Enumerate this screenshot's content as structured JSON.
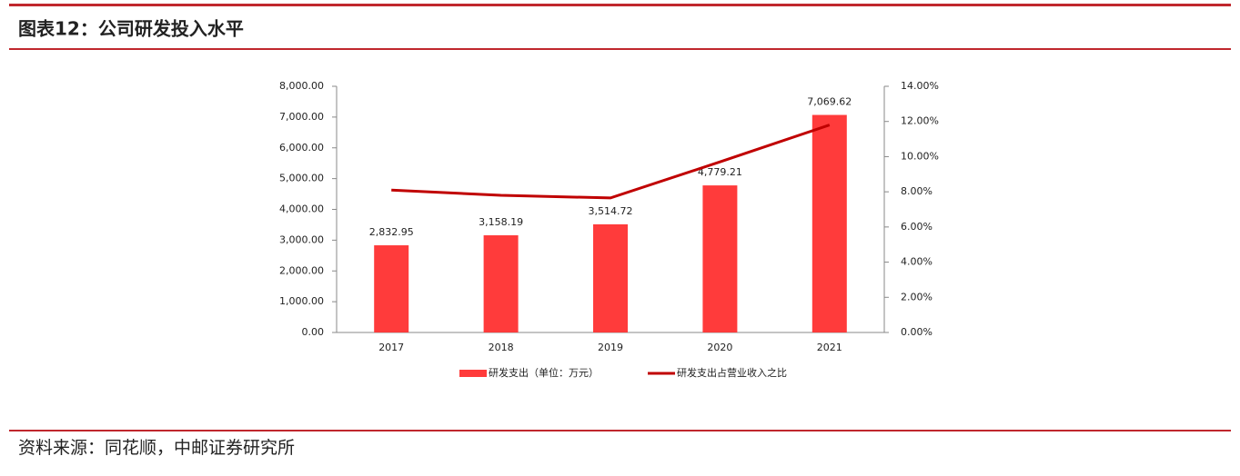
{
  "chart_data": {
    "type": "bar",
    "title": "图表12：公司研发投入水平",
    "categories": [
      "2017",
      "2018",
      "2019",
      "2020",
      "2021"
    ],
    "series": [
      {
        "name": "研发支出（单位：万元）",
        "type": "bar",
        "color": "#ff3b3b",
        "values": [
          2832.95,
          3158.19,
          3514.72,
          4779.21,
          7069.62
        ],
        "value_labels": [
          "2,832.95",
          "3,158.19",
          "3,514.72",
          "4,779.21",
          "7,069.62"
        ]
      },
      {
        "name": "研发支出占营业收入之比",
        "type": "line",
        "axis": "y2",
        "color": "#c00000",
        "values": [
          8.1,
          7.8,
          7.65,
          9.7,
          11.8
        ]
      }
    ],
    "ylim": [
      0,
      8000
    ],
    "yticks": [
      {
        "value": 0,
        "label": "0.00"
      },
      {
        "value": 1000,
        "label": "1,000.00"
      },
      {
        "value": 2000,
        "label": "2,000.00"
      },
      {
        "value": 3000,
        "label": "3,000.00"
      },
      {
        "value": 4000,
        "label": "4,000.00"
      },
      {
        "value": 5000,
        "label": "5,000.00"
      },
      {
        "value": 6000,
        "label": "6,000.00"
      },
      {
        "value": 7000,
        "label": "7,000.00"
      },
      {
        "value": 8000,
        "label": "8,000.00"
      }
    ],
    "y2lim": [
      0,
      14
    ],
    "y2ticks": [
      {
        "value": 0,
        "label": "0.00%"
      },
      {
        "value": 2,
        "label": "2.00%"
      },
      {
        "value": 4,
        "label": "4.00%"
      },
      {
        "value": 6,
        "label": "6.00%"
      },
      {
        "value": 8,
        "label": "8.00%"
      },
      {
        "value": 10,
        "label": "10.00%"
      },
      {
        "value": 12,
        "label": "12.00%"
      },
      {
        "value": 14,
        "label": "14.00%"
      }
    ],
    "grid": false,
    "legend": "bottom"
  },
  "footer": {
    "source": "资料来源：同花顺，中邮证券研究所"
  }
}
